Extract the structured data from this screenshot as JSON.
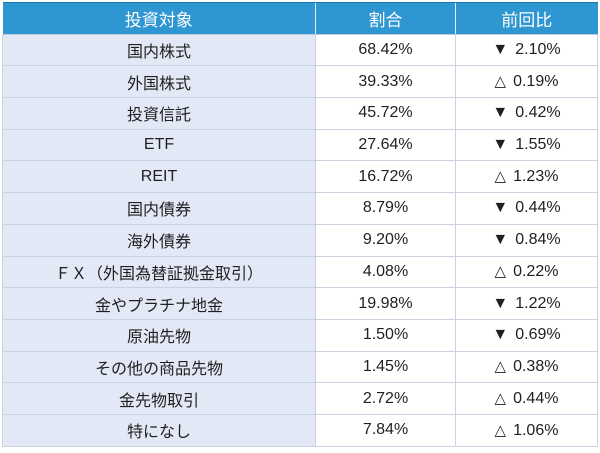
{
  "colors": {
    "header_bg": "#2e96d0",
    "header_text": "#ffffff",
    "row_bg": "#e3e8f6",
    "cell_bg": "#ffffff",
    "border": "#ccd3e0",
    "text": "#1f1f1f"
  },
  "table": {
    "headers": [
      {
        "label": "投資対象"
      },
      {
        "label": "割合"
      },
      {
        "label": "前回比"
      }
    ],
    "rows": [
      {
        "target": "国内株式",
        "ratio": "68.42%",
        "change_symbol": "▼",
        "change_value": "2.10%",
        "direction": "down"
      },
      {
        "target": "外国株式",
        "ratio": "39.33%",
        "change_symbol": "△",
        "change_value": "0.19%",
        "direction": "up"
      },
      {
        "target": "投資信託",
        "ratio": "45.72%",
        "change_symbol": "▼",
        "change_value": "0.42%",
        "direction": "down"
      },
      {
        "target": "ETF",
        "ratio": "27.64%",
        "change_symbol": "▼",
        "change_value": "1.55%",
        "direction": "down"
      },
      {
        "target": "REIT",
        "ratio": "16.72%",
        "change_symbol": "△",
        "change_value": "1.23%",
        "direction": "up"
      },
      {
        "target": "国内債券",
        "ratio": "8.79%",
        "change_symbol": "▼",
        "change_value": "0.44%",
        "direction": "down"
      },
      {
        "target": "海外債券",
        "ratio": "9.20%",
        "change_symbol": "▼",
        "change_value": "0.84%",
        "direction": "down"
      },
      {
        "target": "ＦＸ（外国為替証拠金取引）",
        "ratio": "4.08%",
        "change_symbol": "△",
        "change_value": "0.22%",
        "direction": "up"
      },
      {
        "target": "金やプラチナ地金",
        "ratio": "19.98%",
        "change_symbol": "▼",
        "change_value": "1.22%",
        "direction": "down"
      },
      {
        "target": "原油先物",
        "ratio": "1.50%",
        "change_symbol": "▼",
        "change_value": "0.69%",
        "direction": "down"
      },
      {
        "target": "その他の商品先物",
        "ratio": "1.45%",
        "change_symbol": "△",
        "change_value": "0.38%",
        "direction": "up"
      },
      {
        "target": "金先物取引",
        "ratio": "2.72%",
        "change_symbol": "△",
        "change_value": "0.44%",
        "direction": "up"
      },
      {
        "target": "特になし",
        "ratio": "7.84%",
        "change_symbol": "△",
        "change_value": "1.06%",
        "direction": "up"
      }
    ]
  }
}
